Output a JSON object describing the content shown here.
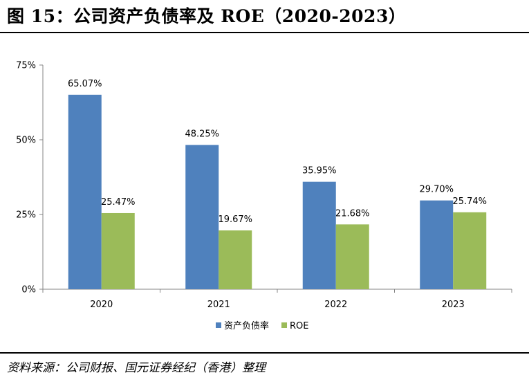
{
  "header": {
    "title": "图 15：公司资产负债率及 ROE（2020-2023）"
  },
  "footer": {
    "source": "资料来源：公司财报、国元证券经纪（香港）整理"
  },
  "chart_data": {
    "type": "bar",
    "categories": [
      "2020",
      "2021",
      "2022",
      "2023"
    ],
    "series": [
      {
        "name": "资产负债率",
        "values": [
          65.07,
          48.25,
          35.95,
          29.7
        ],
        "labels": [
          "65.07%",
          "48.25%",
          "35.95%",
          "29.70%"
        ],
        "color": "#4f81bd"
      },
      {
        "name": "ROE",
        "values": [
          25.47,
          19.67,
          21.68,
          25.74
        ],
        "labels": [
          "25.47%",
          "19.67%",
          "21.68%",
          "25.74%"
        ],
        "color": "#9bbb59"
      }
    ],
    "yticks": [
      "0%",
      "25%",
      "50%",
      "75%"
    ],
    "ylim": [
      0,
      75
    ],
    "legend": "bottom",
    "grid": false
  }
}
